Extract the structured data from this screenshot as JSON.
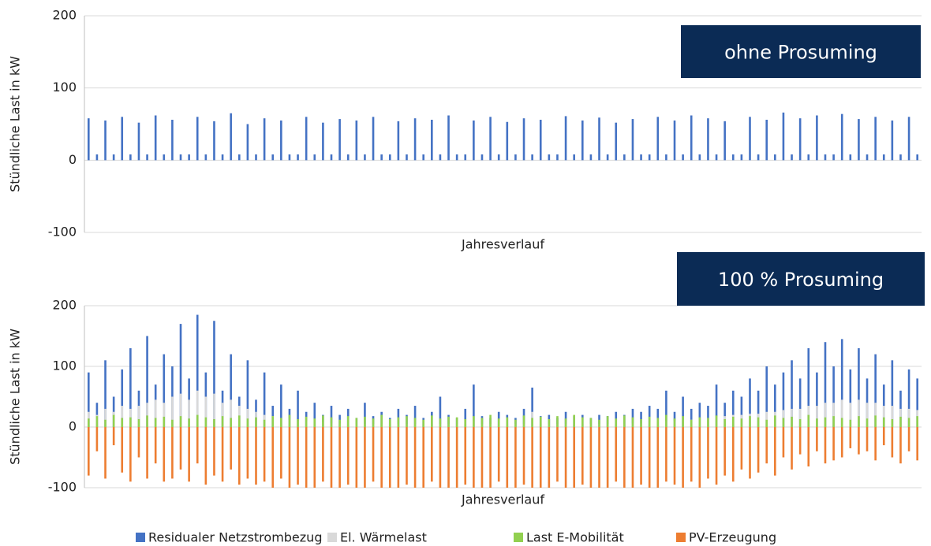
{
  "chart_data": [
    {
      "type": "bar",
      "ylabel": "Stündliche Last in kW",
      "xlabel": "Jahresverlauf",
      "annotation": "ohne Prosuming",
      "ylim": [
        -100,
        200
      ],
      "yticks": [
        -100,
        0,
        100,
        200
      ],
      "grid": true,
      "negative_tick_color": "#ff0000",
      "categories": [
        null,
        null,
        null,
        null,
        null,
        null,
        null,
        null,
        null,
        null,
        null,
        null,
        null,
        null,
        null,
        null,
        null,
        null,
        null,
        null,
        null,
        null,
        null,
        null,
        null,
        null,
        null,
        null,
        null,
        null,
        null,
        null,
        null,
        null,
        null,
        null,
        null,
        null,
        null,
        null,
        null,
        null,
        null,
        null,
        null,
        null,
        null,
        null,
        null,
        null,
        null,
        null,
        null,
        null,
        null,
        null,
        null,
        null,
        null,
        null,
        null,
        null,
        null,
        null,
        null,
        null,
        null,
        null,
        null,
        null,
        null,
        null,
        null,
        null,
        null,
        null,
        null,
        null,
        null,
        null,
        null,
        null,
        null,
        null,
        null,
        null,
        null,
        null,
        null,
        null,
        null,
        null,
        null,
        null,
        null,
        null,
        null,
        null,
        null,
        null
      ],
      "series": [
        {
          "color": "#4472c4",
          "values": [
            58,
            8,
            55,
            8,
            60,
            8,
            52,
            8,
            62,
            8,
            56,
            8,
            8,
            60,
            8,
            54,
            8,
            65,
            8,
            50,
            8,
            58,
            8,
            55,
            8,
            8,
            60,
            8,
            52,
            8,
            57,
            8,
            55,
            8,
            60,
            8,
            8,
            54,
            8,
            58,
            8,
            56,
            8,
            62,
            8,
            8,
            55,
            8,
            60,
            8,
            53,
            8,
            58,
            8,
            56,
            8,
            8,
            61,
            8,
            55,
            8,
            59,
            8,
            52,
            8,
            57,
            8,
            8,
            60,
            8,
            55,
            8,
            62,
            8,
            58,
            8,
            54,
            8,
            8,
            60,
            8,
            56,
            8,
            66,
            8,
            58,
            8,
            62,
            8,
            8,
            64,
            8,
            57,
            8,
            60,
            8,
            55,
            8,
            60,
            8
          ]
        }
      ]
    },
    {
      "type": "bar",
      "ylabel": "Stündliche Last in kW",
      "xlabel": "Jahresverlauf",
      "annotation": "100 % Prosuming",
      "ylim": [
        -100,
        200
      ],
      "yticks": [
        -100,
        0,
        100,
        200
      ],
      "grid": true,
      "negative_tick_color": "#ff0000",
      "legend": "bottom",
      "categories": [
        null,
        null,
        null,
        null,
        null,
        null,
        null,
        null,
        null,
        null,
        null,
        null,
        null,
        null,
        null,
        null,
        null,
        null,
        null,
        null,
        null,
        null,
        null,
        null,
        null,
        null,
        null,
        null,
        null,
        null,
        null,
        null,
        null,
        null,
        null,
        null,
        null,
        null,
        null,
        null,
        null,
        null,
        null,
        null,
        null,
        null,
        null,
        null,
        null,
        null,
        null,
        null,
        null,
        null,
        null,
        null,
        null,
        null,
        null,
        null,
        null,
        null,
        null,
        null,
        null,
        null,
        null,
        null,
        null,
        null,
        null,
        null,
        null,
        null,
        null,
        null,
        null,
        null,
        null,
        null,
        null,
        null,
        null,
        null,
        null,
        null,
        null,
        null,
        null,
        null,
        null,
        null,
        null,
        null,
        null,
        null,
        null,
        null,
        null,
        null
      ],
      "series": [
        {
          "name": "Residualer Netzstrombezug",
          "color": "#4472c4",
          "values": [
            90,
            40,
            110,
            50,
            95,
            130,
            60,
            150,
            70,
            120,
            100,
            170,
            80,
            185,
            90,
            175,
            60,
            120,
            50,
            110,
            45,
            90,
            35,
            70,
            30,
            60,
            25,
            40,
            20,
            35,
            20,
            30,
            15,
            40,
            18,
            25,
            15,
            30,
            20,
            35,
            15,
            25,
            50,
            20,
            15,
            30,
            70,
            18,
            15,
            25,
            20,
            15,
            30,
            65,
            18,
            20,
            15,
            25,
            18,
            20,
            15,
            20,
            18,
            25,
            20,
            30,
            25,
            35,
            30,
            60,
            25,
            50,
            30,
            40,
            35,
            70,
            40,
            60,
            50,
            80,
            60,
            100,
            70,
            90,
            110,
            80,
            130,
            90,
            140,
            100,
            145,
            95,
            130,
            80,
            120,
            70,
            110,
            60,
            95,
            80
          ]
        },
        {
          "name": "El. Wärmelast",
          "color": "#d9d9d9",
          "values": [
            25,
            20,
            30,
            25,
            35,
            30,
            35,
            40,
            45,
            40,
            50,
            55,
            45,
            60,
            50,
            55,
            40,
            45,
            35,
            30,
            25,
            20,
            18,
            15,
            12,
            10,
            10,
            8,
            8,
            6,
            6,
            5,
            5,
            5,
            5,
            5,
            5,
            5,
            5,
            5,
            5,
            5,
            5,
            5,
            5,
            5,
            10,
            5,
            5,
            5,
            5,
            5,
            5,
            25,
            5,
            5,
            5,
            5,
            5,
            5,
            5,
            5,
            5,
            5,
            5,
            6,
            6,
            8,
            8,
            10,
            10,
            12,
            12,
            15,
            15,
            18,
            18,
            20,
            20,
            22,
            22,
            25,
            25,
            28,
            30,
            30,
            35,
            35,
            40,
            40,
            45,
            40,
            45,
            40,
            40,
            35,
            35,
            30,
            30,
            28
          ]
        },
        {
          "name": "Last E-Mobilität",
          "color": "#92d050",
          "values": [
            14,
            18,
            12,
            20,
            15,
            16,
            13,
            19,
            15,
            17,
            12,
            18,
            14,
            20,
            16,
            13,
            18,
            15,
            19,
            14,
            16,
            12,
            18,
            15,
            20,
            13,
            17,
            14,
            19,
            16,
            12,
            18,
            15,
            17,
            14,
            20,
            13,
            16,
            18,
            15,
            12,
            19,
            14,
            17,
            16,
            13,
            18,
            15,
            20,
            14,
            16,
            12,
            19,
            15,
            17,
            13,
            18,
            14,
            20,
            16,
            15,
            12,
            18,
            14,
            19,
            16,
            13,
            17,
            15,
            20,
            14,
            18,
            12,
            16,
            15,
            19,
            13,
            17,
            14,
            18,
            16,
            12,
            19,
            15,
            17,
            13,
            20,
            14,
            16,
            18,
            15,
            12,
            18,
            14,
            19,
            16,
            13,
            17,
            15,
            18
          ]
        },
        {
          "name": "PV-Erzeugung",
          "color": "#ed7d31",
          "values": [
            -80,
            -40,
            -85,
            -30,
            -75,
            -90,
            -50,
            -85,
            -60,
            -90,
            -85,
            -70,
            -90,
            -60,
            -95,
            -80,
            -90,
            -70,
            -95,
            -85,
            -95,
            -90,
            -100,
            -85,
            -100,
            -95,
            -100,
            -100,
            -90,
            -100,
            -100,
            -95,
            -100,
            -100,
            -90,
            -100,
            -100,
            -100,
            -95,
            -100,
            -100,
            -90,
            -100,
            -100,
            -100,
            -95,
            -100,
            -100,
            -100,
            -90,
            -100,
            -100,
            -95,
            -100,
            -100,
            -100,
            -90,
            -100,
            -100,
            -95,
            -100,
            -100,
            -100,
            -90,
            -100,
            -100,
            -95,
            -100,
            -100,
            -90,
            -95,
            -100,
            -90,
            -100,
            -85,
            -95,
            -80,
            -90,
            -70,
            -85,
            -75,
            -60,
            -80,
            -50,
            -70,
            -45,
            -65,
            -40,
            -60,
            -55,
            -50,
            -35,
            -45,
            -40,
            -55,
            -30,
            -50,
            -60,
            -40,
            -55
          ]
        }
      ]
    }
  ]
}
